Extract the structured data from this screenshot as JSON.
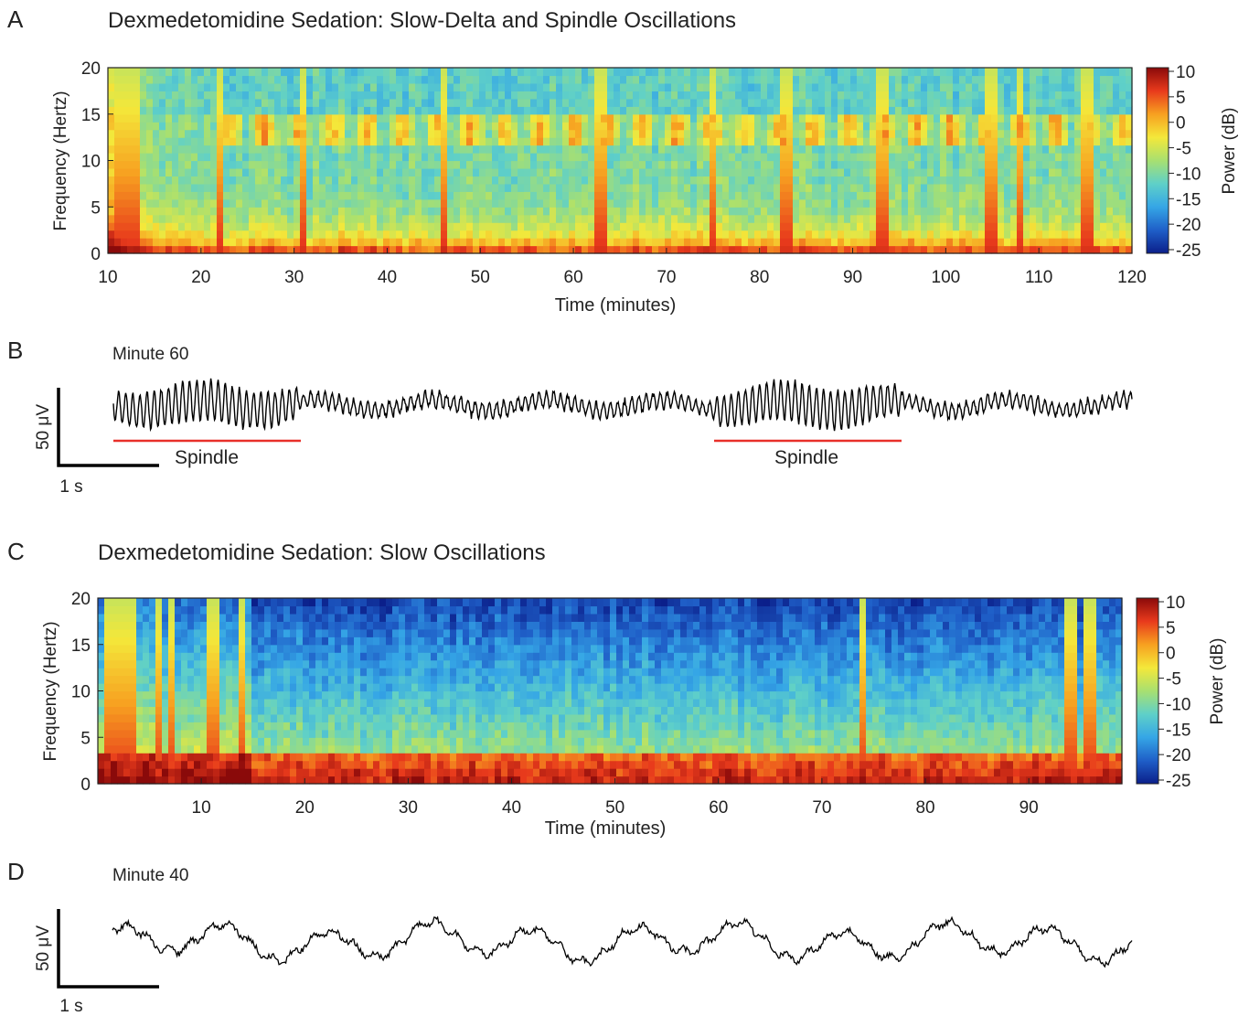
{
  "colors": {
    "colormap": [
      "#0b1f8a",
      "#1f5fc8",
      "#35a6e6",
      "#5fd0c8",
      "#a8e070",
      "#f4e83a",
      "#f7a020",
      "#e83a1c",
      "#8a0a0a"
    ],
    "trace": "#000000",
    "spindle_bar": "#e8302a"
  },
  "panels": [
    {
      "letter": "A",
      "title": "Dexmedetomidine Sedation: Slow-Delta and Spindle Oscillations",
      "ylabel": "Frequency (Hertz)",
      "xlabel": "Time (minutes)",
      "colorbar_label": "Power (dB)",
      "colorbar_ticks": [
        "10",
        "5",
        "0",
        "-5",
        "-10",
        "-15",
        "-20",
        "-25"
      ],
      "yticks": [
        "20",
        "15",
        "10",
        "5",
        "0"
      ],
      "xticks": [
        "10",
        "20",
        "30",
        "40",
        "50",
        "60",
        "70",
        "80",
        "90",
        "100",
        "110",
        "120"
      ]
    },
    {
      "letter": "B",
      "label": "Minute 60",
      "scale_v": "50 μV",
      "scale_t": "1 s",
      "annotations": [
        "Spindle",
        "Spindle"
      ]
    },
    {
      "letter": "C",
      "title": "Dexmedetomidine Sedation: Slow Oscillations",
      "ylabel": "Frequency (Hertz)",
      "xlabel": "Time (minutes)",
      "colorbar_label": "Power (dB)",
      "colorbar_ticks": [
        "10",
        "5",
        "0",
        "-5",
        "-10",
        "-15",
        "-20",
        "-25"
      ],
      "yticks": [
        "20",
        "15",
        "10",
        "5",
        "0"
      ],
      "xticks": [
        "10",
        "20",
        "30",
        "40",
        "50",
        "60",
        "70",
        "80",
        "90"
      ]
    },
    {
      "letter": "D",
      "label": "Minute 40",
      "scale_v": "50 μV",
      "scale_t": "1 s"
    }
  ],
  "chart_data": [
    {
      "type": "heatmap",
      "title": "Dexmedetomidine Sedation: Slow-Delta and Spindle Oscillations",
      "xlabel": "Time (minutes)",
      "ylabel": "Frequency (Hertz)",
      "xlim": [
        10,
        120
      ],
      "ylim": [
        0,
        20
      ],
      "clim": [
        -25,
        10
      ],
      "colorbar_label": "Power (dB)",
      "features": {
        "slow_delta_band_hz": [
          0,
          2
        ],
        "spindle_band_hz": [
          12,
          15
        ],
        "broadband_artifact_minutes": [
          11,
          12,
          13,
          22,
          31,
          46,
          63,
          75,
          83,
          93,
          105,
          108,
          115
        ]
      }
    },
    {
      "type": "line",
      "title": "Minute 60",
      "description_units": "EEG voltage trace",
      "duration_s": 11,
      "spindle_windows_s": [
        [
          0,
          2
        ],
        [
          6.5,
          8.5
        ]
      ],
      "spindle_freq_hz": 13
    },
    {
      "type": "heatmap",
      "title": "Dexmedetomidine Sedation: Slow Oscillations",
      "xlabel": "Time (minutes)",
      "ylabel": "Frequency (Hertz)",
      "xlim": [
        0,
        99
      ],
      "ylim": [
        0,
        20
      ],
      "clim": [
        -25,
        10
      ],
      "colorbar_label": "Power (dB)",
      "features": {
        "slow_band_hz": [
          0,
          3
        ],
        "broadband_artifact_minutes": [
          1,
          2,
          3,
          6,
          7,
          11,
          14,
          74,
          94,
          96
        ]
      }
    },
    {
      "type": "line",
      "title": "Minute 40",
      "description_units": "EEG voltage trace",
      "duration_s": 11,
      "slow_wave_freq_hz": 1
    }
  ]
}
